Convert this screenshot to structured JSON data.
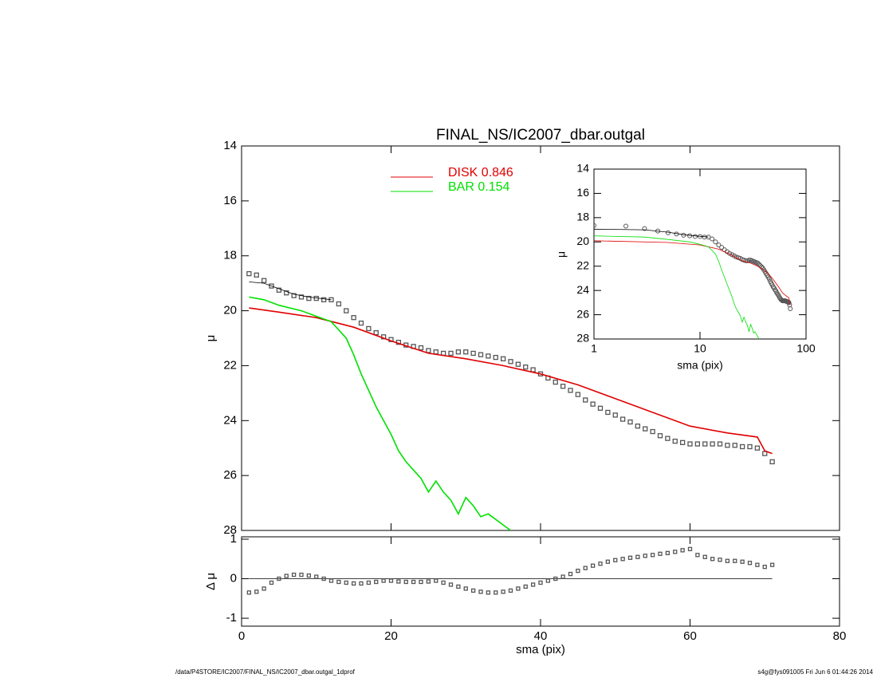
{
  "chart_data": [
    {
      "type": "line",
      "title": "FINAL_NS/IC2007_dbar.outgal",
      "y_label": "μ",
      "xlim": [
        0,
        80
      ],
      "ylim": [
        14,
        28
      ],
      "y_reversed": true,
      "xticks": [
        0,
        20,
        40,
        60,
        80
      ],
      "yticks": [
        14,
        16,
        18,
        20,
        22,
        24,
        26,
        28
      ],
      "series": [
        {
          "marker": "square",
          "color": "#555555",
          "x": [
            1,
            2,
            3,
            4,
            5,
            6,
            7,
            8,
            9,
            10,
            11,
            12,
            13,
            14,
            15,
            16,
            17,
            18,
            19,
            20,
            21,
            22,
            23,
            24,
            25,
            26,
            27,
            28,
            29,
            30,
            31,
            32,
            33,
            34,
            35,
            36,
            37,
            38,
            39,
            40,
            41,
            42,
            43,
            44,
            45,
            46,
            47,
            48,
            49,
            50,
            51,
            52,
            53,
            54,
            55,
            56,
            57,
            58,
            59,
            60,
            61,
            62,
            63,
            64,
            65,
            66,
            67,
            68,
            69,
            70,
            71
          ],
          "values": [
            18.65,
            18.7,
            18.9,
            19.1,
            19.25,
            19.35,
            19.45,
            19.5,
            19.55,
            19.55,
            19.6,
            19.6,
            19.75,
            20.0,
            20.25,
            20.45,
            20.65,
            20.8,
            20.95,
            21.05,
            21.15,
            21.25,
            21.3,
            21.35,
            21.45,
            21.5,
            21.55,
            21.55,
            21.5,
            21.5,
            21.55,
            21.6,
            21.65,
            21.7,
            21.75,
            21.85,
            21.95,
            22.05,
            22.15,
            22.3,
            22.45,
            22.6,
            22.75,
            22.9,
            23.05,
            23.25,
            23.4,
            23.55,
            23.7,
            23.8,
            23.95,
            24.05,
            24.2,
            24.3,
            24.4,
            24.55,
            24.65,
            24.75,
            24.8,
            24.85,
            24.85,
            24.85,
            24.85,
            24.85,
            24.9,
            24.9,
            24.95,
            24.95,
            25.0,
            25.2,
            25.5
          ]
        },
        {
          "color": "#000000",
          "x": [
            1,
            3,
            5,
            7,
            9,
            12
          ],
          "values": [
            18.95,
            19.0,
            19.2,
            19.4,
            19.5,
            19.6
          ]
        },
        {
          "name": "DISK  0.846",
          "color": "#e00000",
          "x": [
            1,
            5,
            10,
            15,
            20,
            25,
            30,
            35,
            40,
            45,
            50,
            55,
            60,
            65,
            69,
            70,
            71
          ],
          "values": [
            19.9,
            20.05,
            20.25,
            20.6,
            21.1,
            21.55,
            21.75,
            22.0,
            22.3,
            22.7,
            23.2,
            23.7,
            24.2,
            24.45,
            24.6,
            25.1,
            25.2
          ]
        },
        {
          "name": "BAR  0.154",
          "color": "#00e000",
          "x": [
            1,
            3,
            5,
            8,
            10,
            12,
            14,
            15,
            16,
            17,
            18,
            19,
            20,
            21,
            22,
            23,
            24,
            25,
            26,
            27,
            28,
            29,
            30,
            31,
            32,
            33,
            34,
            35,
            36
          ],
          "values": [
            19.5,
            19.6,
            19.8,
            20.0,
            20.2,
            20.4,
            21.0,
            21.6,
            22.3,
            22.9,
            23.5,
            24.0,
            24.5,
            25.1,
            25.5,
            25.8,
            26.1,
            26.6,
            26.2,
            26.6,
            26.9,
            27.4,
            26.8,
            27.1,
            27.5,
            27.4,
            27.6,
            27.8,
            28.0
          ]
        }
      ]
    },
    {
      "type": "scatter",
      "x_label": "sma (pix)",
      "y_label": "Δ μ",
      "xlim": [
        0,
        80
      ],
      "ylim": [
        -1.2,
        1.06
      ],
      "xticks": [
        0,
        20,
        40,
        60,
        80
      ],
      "yticks": [
        -1,
        0,
        1
      ],
      "color": "#555555",
      "x": [
        1,
        2,
        3,
        4,
        5,
        6,
        7,
        8,
        9,
        10,
        11,
        12,
        13,
        14,
        15,
        16,
        17,
        18,
        19,
        20,
        21,
        22,
        23,
        24,
        25,
        26,
        27,
        28,
        29,
        30,
        31,
        32,
        33,
        34,
        35,
        36,
        37,
        38,
        39,
        40,
        41,
        42,
        43,
        44,
        45,
        46,
        47,
        48,
        49,
        50,
        51,
        52,
        53,
        54,
        55,
        56,
        57,
        58,
        59,
        60,
        61,
        62,
        63,
        64,
        65,
        66,
        67,
        68,
        69,
        70,
        71
      ],
      "values": [
        -0.35,
        -0.33,
        -0.25,
        -0.1,
        0.0,
        0.07,
        0.1,
        0.1,
        0.08,
        0.05,
        0.0,
        -0.05,
        -0.08,
        -0.1,
        -0.12,
        -0.12,
        -0.1,
        -0.08,
        -0.05,
        -0.05,
        -0.07,
        -0.08,
        -0.08,
        -0.08,
        -0.07,
        -0.05,
        -0.1,
        -0.15,
        -0.2,
        -0.25,
        -0.3,
        -0.33,
        -0.35,
        -0.35,
        -0.33,
        -0.3,
        -0.25,
        -0.2,
        -0.15,
        -0.1,
        -0.05,
        0.0,
        0.05,
        0.12,
        0.2,
        0.27,
        0.33,
        0.38,
        0.43,
        0.47,
        0.5,
        0.53,
        0.55,
        0.58,
        0.6,
        0.63,
        0.65,
        0.68,
        0.72,
        0.75,
        0.6,
        0.55,
        0.5,
        0.48,
        0.45,
        0.45,
        0.43,
        0.4,
        0.35,
        0.3,
        0.35
      ]
    },
    {
      "type": "inset",
      "x_label": "sma (pix)",
      "y_label": "μ",
      "xlim": [
        1,
        100
      ],
      "log_x": true,
      "ylim": [
        14,
        28
      ],
      "y_reversed": true,
      "xticks": [
        1,
        10,
        100
      ],
      "yticks": [
        14,
        16,
        18,
        20,
        22,
        24,
        26,
        28
      ]
    }
  ],
  "footer": {
    "left": "/data/P4STORE/IC2007/FINAL_NS/IC2007_dbar.outgal_1dprof",
    "right": "s4g@fys091005  Fri Jun  6 01:44:26 2014"
  }
}
